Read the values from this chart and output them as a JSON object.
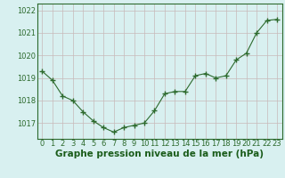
{
  "x": [
    0,
    1,
    2,
    3,
    4,
    5,
    6,
    7,
    8,
    9,
    10,
    11,
    12,
    13,
    14,
    15,
    16,
    17,
    18,
    19,
    20,
    21,
    22,
    23
  ],
  "y": [
    1019.3,
    1018.9,
    1018.2,
    1018.0,
    1017.5,
    1017.1,
    1016.8,
    1016.6,
    1016.8,
    1016.9,
    1017.0,
    1017.55,
    1018.3,
    1018.4,
    1018.4,
    1019.1,
    1019.2,
    1019.0,
    1019.1,
    1019.8,
    1020.1,
    1021.0,
    1021.55,
    1021.6
  ],
  "line_color": "#2d6a2d",
  "marker": "D",
  "marker_size": 2.5,
  "bg_color": "#d8f0f0",
  "grid_color": "#c8b8b8",
  "xlabel": "Graphe pression niveau de la mer (hPa)",
  "xlabel_fontsize": 7.5,
  "xlabel_color": "#1a5c1a",
  "ylim_min": 1016.3,
  "ylim_max": 1022.3,
  "yticks": [
    1017,
    1018,
    1019,
    1020,
    1021,
    1022
  ],
  "xticks": [
    0,
    1,
    2,
    3,
    4,
    5,
    6,
    7,
    8,
    9,
    10,
    11,
    12,
    13,
    14,
    15,
    16,
    17,
    18,
    19,
    20,
    21,
    22,
    23
  ],
  "tick_label_fontsize": 6.0,
  "tick_color": "#2d6a2d",
  "spine_color": "#2d6a2d"
}
